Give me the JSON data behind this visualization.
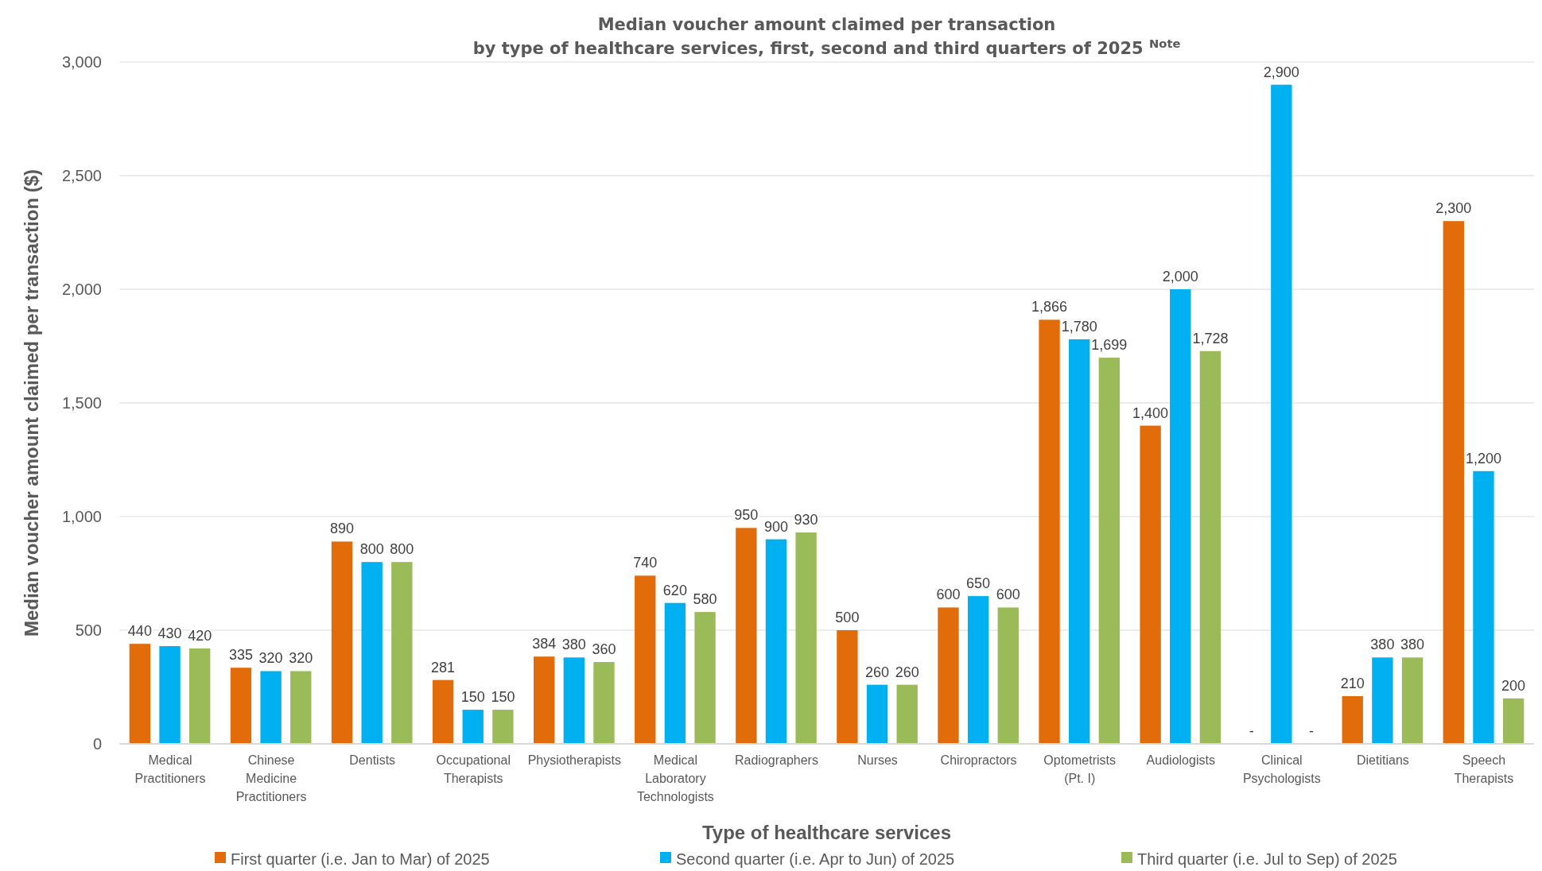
{
  "chart_data": {
    "type": "bar",
    "title": "Median voucher amount claimed per transaction\nby type of healthcare services, first, second and third quarters of 2025 $^{Note}$",
    "xlabel": "Type of healthcare services",
    "ylabel": "Median voucher amount claimed per transaction ($)",
    "categories": [
      "Medical Practitioners",
      "Chinese Medicine Practitioners",
      "Dentists",
      "Occupational Therapists",
      "Physiotherapists",
      "Medical Laboratory Technologists",
      "Radiographers",
      "Nurses",
      "Chiropractors",
      "Optometrists (Pt. I)",
      "Audiologists",
      "Clinical Psychologists",
      "Dietitians",
      "Speech Therapists"
    ],
    "series": [
      {
        "name": "First quarter (i.e. Jan to Mar) of 2025",
        "color": "#e36c0a",
        "values": [
          440,
          335,
          890,
          281,
          384,
          740,
          950,
          500,
          600,
          1866,
          1400,
          null,
          210,
          2300
        ],
        "value_labels": [
          "440",
          "335",
          "890",
          "281",
          "384",
          "740",
          "950",
          "500",
          "600",
          "1,866",
          "1,400",
          "-",
          "210",
          "2,300"
        ]
      },
      {
        "name": "Second quarter (i.e. Apr to Jun) of 2025",
        "color": "#00b0f0",
        "values": [
          430,
          320,
          800,
          150,
          380,
          620,
          900,
          260,
          650,
          1780,
          2000,
          2900,
          380,
          1200
        ],
        "value_labels": [
          "430",
          "320",
          "800",
          "150",
          "380",
          "620",
          "900",
          "260",
          "650",
          "1,780",
          "2,000",
          "2,900",
          "380",
          "1,200"
        ]
      },
      {
        "name": "Third quarter (i.e. Jul to Sep) of 2025",
        "color": "#9bbb59",
        "values": [
          420,
          320,
          800,
          150,
          360,
          580,
          930,
          260,
          600,
          1699,
          1728,
          null,
          380,
          200
        ],
        "value_labels": [
          "420",
          "320",
          "800",
          "150",
          "360",
          "580",
          "930",
          "260",
          "600",
          "1,699",
          "1,728",
          "-",
          "380",
          "200"
        ]
      }
    ],
    "ylim": [
      0,
      3000
    ],
    "yticks": [
      {
        "value": 0,
        "label": "0"
      },
      {
        "value": 500,
        "label": "500"
      },
      {
        "value": 1000,
        "label": "1,000"
      },
      {
        "value": 1500,
        "label": "1,500"
      },
      {
        "value": 2000,
        "label": "2,000"
      },
      {
        "value": 2500,
        "label": "2,500"
      },
      {
        "value": 3000,
        "label": "3,000"
      }
    ],
    "grid": "y",
    "legend": "bottom"
  }
}
